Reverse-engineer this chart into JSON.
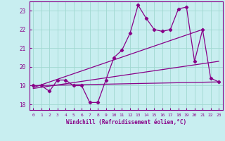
{
  "xlabel": "Windchill (Refroidissement éolien,°C)",
  "xlim": [
    -0.5,
    23.5
  ],
  "ylim": [
    17.7,
    23.5
  ],
  "yticks": [
    18,
    19,
    20,
    21,
    22,
    23
  ],
  "xticks": [
    0,
    1,
    2,
    3,
    4,
    5,
    6,
    7,
    8,
    9,
    10,
    11,
    12,
    13,
    14,
    15,
    16,
    17,
    18,
    19,
    20,
    21,
    22,
    23
  ],
  "background_color": "#c8eef0",
  "grid_color": "#a0d8d0",
  "line_color": "#880088",
  "data_x": [
    0,
    1,
    2,
    3,
    4,
    5,
    6,
    7,
    8,
    9,
    10,
    11,
    12,
    13,
    14,
    15,
    16,
    17,
    18,
    19,
    20,
    21,
    22,
    23
  ],
  "data_y_main": [
    19.0,
    19.0,
    18.7,
    19.3,
    19.3,
    19.0,
    19.0,
    18.1,
    18.1,
    19.3,
    20.5,
    20.9,
    21.8,
    23.3,
    22.6,
    22.0,
    21.9,
    22.0,
    23.1,
    23.2,
    20.3,
    22.0,
    19.4,
    19.2
  ],
  "trend1_x": [
    0,
    23
  ],
  "trend1_y": [
    19.0,
    19.2
  ],
  "trend2_x": [
    0,
    23
  ],
  "trend2_y": [
    18.85,
    20.3
  ],
  "trend3_x": [
    0,
    21
  ],
  "trend3_y": [
    18.9,
    22.0
  ]
}
